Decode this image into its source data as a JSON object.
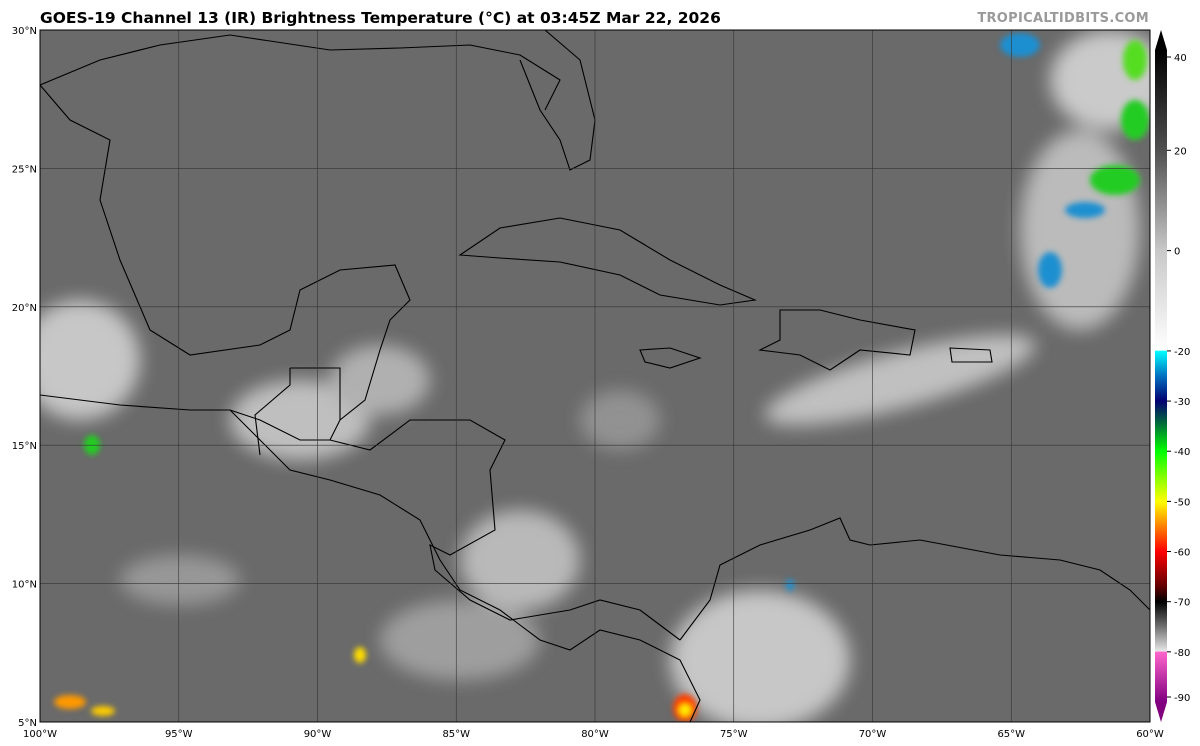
{
  "title": "GOES-19 Channel 13 (IR) Brightness Temperature (°C) at 03:45Z Mar 22, 2026",
  "credit": "TROPICALTIDBITS.COM",
  "map": {
    "lon_range": [
      -100,
      -60
    ],
    "lat_range": [
      5,
      30
    ],
    "lon_labels": [
      "100°W",
      "95°W",
      "90°W",
      "85°W",
      "80°W",
      "75°W",
      "70°W",
      "65°W",
      "60°W"
    ],
    "lat_labels": [
      "5°N",
      "10°N",
      "15°N",
      "20°N",
      "25°N",
      "30°N"
    ],
    "background_color": "#6a6a6a",
    "gridlines": true
  },
  "colorbar": {
    "range": [
      -90,
      40
    ],
    "tick_labels": [
      "40",
      "20",
      "0",
      "-20",
      "-30",
      "-40",
      "-50",
      "-60",
      "-70",
      "-80",
      "-90"
    ],
    "stops": [
      {
        "t": 40,
        "c": "#000000"
      },
      {
        "t": 20,
        "c": "#505050"
      },
      {
        "t": 0,
        "c": "#c8c8c8"
      },
      {
        "t": -19.9,
        "c": "#ffffff"
      },
      {
        "t": -20,
        "c": "#00ffff"
      },
      {
        "t": -25,
        "c": "#0070c0"
      },
      {
        "t": -30,
        "c": "#000070"
      },
      {
        "t": -34,
        "c": "#006040"
      },
      {
        "t": -40,
        "c": "#00ff00"
      },
      {
        "t": -50,
        "c": "#ffff00"
      },
      {
        "t": -55,
        "c": "#ff8000"
      },
      {
        "t": -60,
        "c": "#ff0000"
      },
      {
        "t": -67,
        "c": "#600000"
      },
      {
        "t": -70,
        "c": "#000000"
      },
      {
        "t": -75,
        "c": "#707070"
      },
      {
        "t": -79.9,
        "c": "#e8e8e8"
      },
      {
        "t": -80,
        "c": "#ff66cc"
      },
      {
        "t": -90,
        "c": "#800080"
      }
    ]
  }
}
